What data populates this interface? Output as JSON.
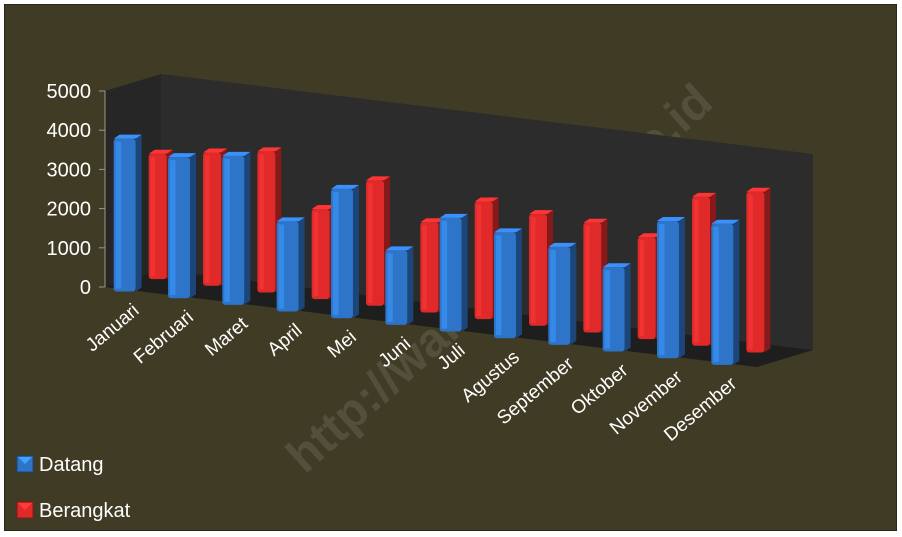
{
  "colors": {
    "background": "#3f3b24",
    "datang": "#2e74c9",
    "berangkat": "#e02a2a",
    "wall": "#2c2c2c",
    "floor": "#1e1e1e"
  },
  "watermark": "http://wahidah.bps.go.id",
  "chart_data": {
    "type": "bar",
    "style": "3d-clustered-column",
    "categories": [
      "Januari",
      "Februari",
      "Maret",
      "April",
      "Mei",
      "Juni",
      "Juli",
      "Agustus",
      "September",
      "Oktober",
      "November",
      "Desember"
    ],
    "series": [
      {
        "name": "Datang",
        "color": "#2e74c9",
        "values": [
          3900,
          3600,
          3800,
          2300,
          3300,
          1900,
          2900,
          2700,
          2500,
          2150,
          3500,
          3600
        ]
      },
      {
        "name": "Berangkat",
        "color": "#e02a2a",
        "values": [
          3200,
          3400,
          3600,
          2300,
          3200,
          2300,
          3000,
          2850,
          2800,
          2600,
          3800,
          4100
        ]
      }
    ],
    "ylim": [
      0,
      5000
    ],
    "yticks": [
      "0",
      "1000",
      "2000",
      "3000",
      "4000",
      "5000"
    ],
    "legend_position": "bottom-left",
    "grid": false,
    "xlabel": "",
    "ylabel": ""
  }
}
